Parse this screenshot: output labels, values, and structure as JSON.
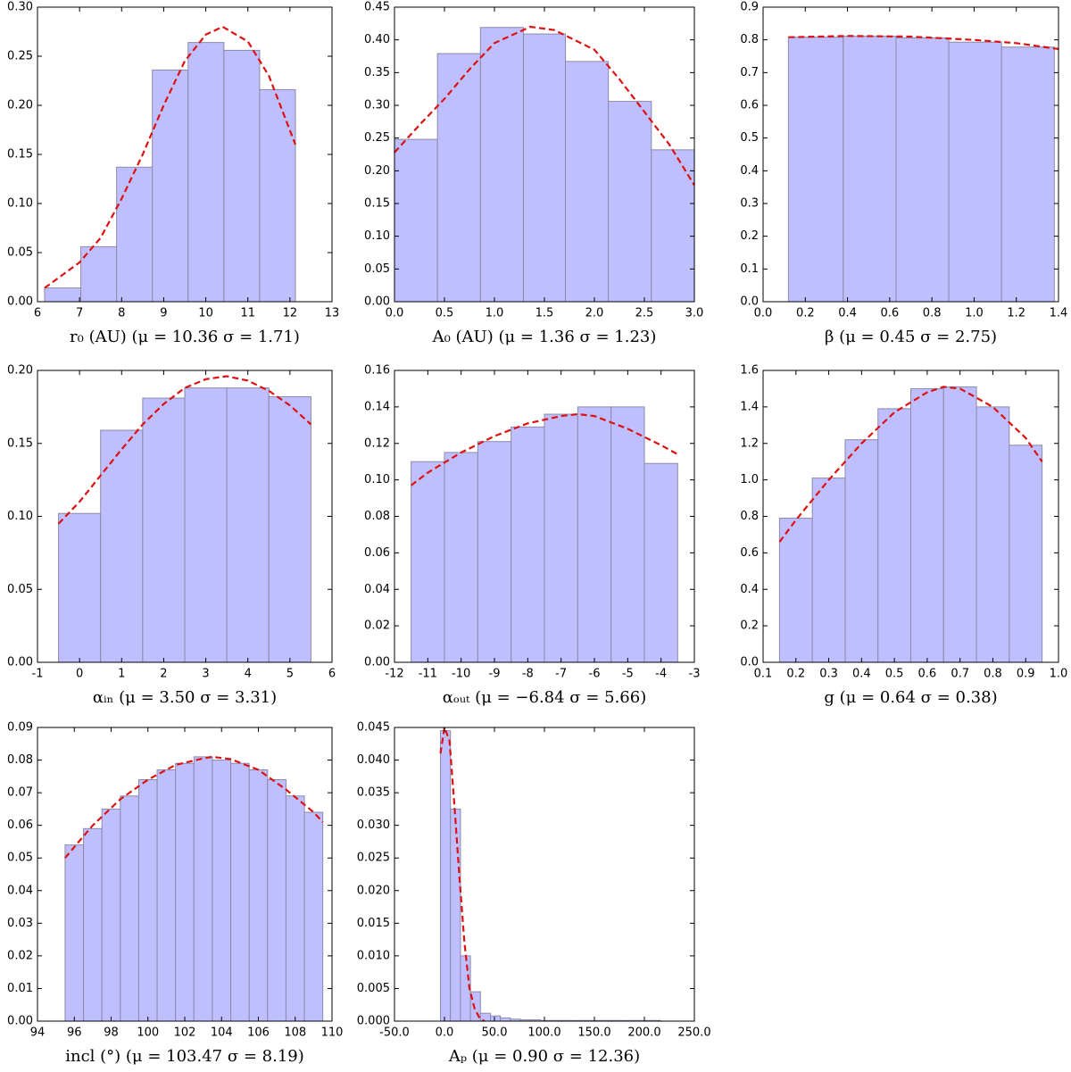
{
  "chart_data": [
    {
      "type": "histogram",
      "x_label": "r₀ (AU) (μ = 10.36 σ = 1.71)",
      "color": "#bfbfff",
      "edgecolor": "#8a8aa8",
      "bins": [
        6.17,
        7.03,
        7.88,
        8.73,
        9.58,
        10.43,
        11.28,
        12.13
      ],
      "values": [
        0.014,
        0.056,
        0.137,
        0.236,
        0.264,
        0.256,
        0.216
      ],
      "fit": {
        "color": "#dd1111",
        "x": [
          6.17,
          7,
          7.5,
          8,
          8.5,
          9,
          9.5,
          10,
          10.4,
          11,
          11.5,
          12.13
        ],
        "values": [
          0.014,
          0.04,
          0.065,
          0.105,
          0.15,
          0.2,
          0.245,
          0.272,
          0.28,
          0.265,
          0.23,
          0.16
        ]
      },
      "xlim": [
        6,
        13
      ],
      "xticks": [
        6,
        7,
        8,
        9,
        10,
        11,
        12,
        13
      ],
      "ylim": [
        0,
        0.3
      ],
      "yticks": [
        {
          "value": 0,
          "label": "0.00"
        },
        0.05,
        {
          "value": 0.1,
          "label": "0.10"
        },
        0.15,
        {
          "value": 0.2,
          "label": "0.20"
        },
        0.25,
        {
          "value": 0.3,
          "label": "0.30"
        }
      ]
    },
    {
      "type": "histogram",
      "x_label": "A₀ (AU) (μ = 1.36 σ = 1.23)",
      "color": "#bfbfff",
      "edgecolor": "#8a8aa8",
      "bins": [
        0,
        0.43,
        0.86,
        1.29,
        1.71,
        2.14,
        2.57,
        3.0
      ],
      "values": [
        0.248,
        0.379,
        0.419,
        0.409,
        0.367,
        0.306,
        0.232
      ],
      "fit": {
        "color": "#dd1111",
        "x": [
          0,
          0.25,
          0.5,
          0.75,
          1.0,
          1.36,
          1.6,
          2.0,
          2.25,
          2.5,
          2.75,
          3.0
        ],
        "values": [
          0.228,
          0.27,
          0.31,
          0.355,
          0.395,
          0.42,
          0.415,
          0.385,
          0.34,
          0.29,
          0.24,
          0.178
        ]
      },
      "xlim": [
        0,
        3
      ],
      "xticks": [
        {
          "value": 0,
          "label": "0.0"
        },
        0.5,
        {
          "value": 1,
          "label": "1.0"
        },
        1.5,
        {
          "value": 2,
          "label": "2.0"
        },
        2.5,
        {
          "value": 3,
          "label": "3.0"
        }
      ],
      "ylim": [
        0,
        0.45
      ],
      "yticks": [
        {
          "value": 0,
          "label": "0.00"
        },
        0.05,
        {
          "value": 0.1,
          "label": "0.10"
        },
        0.15,
        {
          "value": 0.2,
          "label": "0.20"
        },
        0.25,
        {
          "value": 0.3,
          "label": "0.30"
        },
        0.35,
        {
          "value": 0.4,
          "label": "0.40"
        },
        0.45
      ]
    },
    {
      "type": "histogram",
      "x_label": "β (μ = 0.45 σ = 2.75)",
      "color": "#bfbfff",
      "edgecolor": "#8a8aa8",
      "bins": [
        0.12,
        0.38,
        0.63,
        0.88,
        1.13,
        1.38
      ],
      "values": [
        0.808,
        0.811,
        0.806,
        0.793,
        0.778
      ],
      "fit": {
        "color": "#dd1111",
        "x": [
          0.12,
          0.4,
          0.7,
          1.0,
          1.2,
          1.4
        ],
        "values": [
          0.808,
          0.812,
          0.81,
          0.8,
          0.79,
          0.772
        ]
      },
      "xlim": [
        0,
        1.4
      ],
      "xticks": [
        {
          "value": 0,
          "label": "0.0"
        },
        0.2,
        0.4,
        0.6,
        0.8,
        {
          "value": 1,
          "label": "1.0"
        },
        1.2,
        1.4
      ],
      "ylim": [
        0,
        0.9
      ],
      "yticks": [
        {
          "value": 0,
          "label": "0.0"
        },
        0.1,
        0.2,
        0.3,
        0.4,
        0.5,
        0.6,
        0.7,
        0.8,
        0.9
      ]
    },
    {
      "type": "histogram",
      "x_label": "αᵢₙ (μ = 3.50 σ = 3.31)",
      "color": "#bfbfff",
      "edgecolor": "#8a8aa8",
      "bins": [
        -0.5,
        0.5,
        1.5,
        2.5,
        3.5,
        4.5,
        5.5
      ],
      "values": [
        0.102,
        0.159,
        0.181,
        0.188,
        0.188,
        0.182
      ],
      "fit": {
        "color": "#dd1111",
        "x": [
          -0.5,
          0,
          0.5,
          1,
          1.5,
          2,
          2.5,
          3,
          3.5,
          4,
          4.5,
          5,
          5.5
        ],
        "values": [
          0.095,
          0.11,
          0.128,
          0.146,
          0.163,
          0.177,
          0.188,
          0.194,
          0.196,
          0.193,
          0.186,
          0.176,
          0.163
        ]
      },
      "xlim": [
        -1,
        6
      ],
      "xticks": [
        -1,
        0,
        1,
        2,
        3,
        4,
        5,
        6
      ],
      "ylim": [
        0,
        0.2
      ],
      "yticks": [
        {
          "value": 0,
          "label": "0.00"
        },
        0.05,
        {
          "value": 0.1,
          "label": "0.10"
        },
        0.15,
        {
          "value": 0.2,
          "label": "0.20"
        }
      ]
    },
    {
      "type": "histogram",
      "x_label": "αₒᵤₜ (μ = −6.84 σ = 5.66)",
      "color": "#bfbfff",
      "edgecolor": "#8a8aa8",
      "bins": [
        -11.5,
        -10.5,
        -9.5,
        -8.5,
        -7.5,
        -6.5,
        -5.5,
        -4.5,
        -3.5
      ],
      "values": [
        0.11,
        0.115,
        0.121,
        0.129,
        0.136,
        0.14,
        0.14,
        0.109
      ],
      "fit": {
        "color": "#dd1111",
        "x": [
          -11.5,
          -11,
          -10,
          -9,
          -8,
          -7,
          -6.5,
          -6,
          -5,
          -4,
          -3.5
        ],
        "values": [
          0.097,
          0.104,
          0.115,
          0.124,
          0.131,
          0.135,
          0.136,
          0.135,
          0.128,
          0.119,
          0.114
        ]
      },
      "xlim": [
        -12,
        -3
      ],
      "xticks": [
        -12,
        -11,
        -10,
        -9,
        -8,
        -7,
        -6,
        -5,
        -4,
        -3
      ],
      "ylim": [
        0,
        0.16
      ],
      "yticks": [
        {
          "value": 0,
          "label": "0.00"
        },
        0.02,
        0.04,
        0.06,
        0.08,
        {
          "value": 0.1,
          "label": "0.10"
        },
        0.12,
        0.14,
        0.16
      ]
    },
    {
      "type": "histogram",
      "x_label": "g (μ = 0.64 σ = 0.38)",
      "color": "#bfbfff",
      "edgecolor": "#8a8aa8",
      "bins": [
        0.15,
        0.25,
        0.35,
        0.45,
        0.55,
        0.65,
        0.75,
        0.85,
        0.95
      ],
      "values": [
        0.79,
        1.01,
        1.22,
        1.39,
        1.5,
        1.51,
        1.4,
        1.19
      ],
      "fit": {
        "color": "#dd1111",
        "x": [
          0.15,
          0.2,
          0.3,
          0.4,
          0.5,
          0.6,
          0.65,
          0.7,
          0.8,
          0.9,
          0.95
        ],
        "values": [
          0.66,
          0.78,
          1.0,
          1.2,
          1.37,
          1.48,
          1.51,
          1.5,
          1.4,
          1.23,
          1.1
        ]
      },
      "xlim": [
        0.1,
        1.0
      ],
      "xticks": [
        0.1,
        0.2,
        0.3,
        0.4,
        0.5,
        0.6,
        0.7,
        0.8,
        0.9,
        {
          "value": 1,
          "label": "1.0"
        }
      ],
      "ylim": [
        0,
        1.6
      ],
      "yticks": [
        {
          "value": 0,
          "label": "0.0"
        },
        0.2,
        0.4,
        0.6,
        0.8,
        {
          "value": 1,
          "label": "1.0"
        },
        1.2,
        1.4,
        1.6
      ]
    },
    {
      "type": "histogram",
      "x_label": "incl (°) (μ = 103.47 σ = 8.19)",
      "color": "#bfbfff",
      "edgecolor": "#8a8aa8",
      "bins": [
        95.5,
        96.5,
        97.5,
        98.5,
        99.5,
        100.5,
        101.5,
        102.5,
        103.5,
        104.5,
        105.5,
        106.5,
        107.5,
        108.5,
        109.5
      ],
      "values": [
        0.054,
        0.059,
        0.065,
        0.069,
        0.074,
        0.077,
        0.079,
        0.081,
        0.08,
        0.079,
        0.077,
        0.074,
        0.069,
        0.064
      ],
      "fit": {
        "color": "#dd1111",
        "x": [
          95.5,
          97,
          98.5,
          100,
          101.5,
          103,
          103.5,
          104.5,
          106,
          107.5,
          109,
          109.5
        ],
        "values": [
          0.05,
          0.06,
          0.068,
          0.074,
          0.0785,
          0.0805,
          0.081,
          0.0803,
          0.077,
          0.071,
          0.064,
          0.061
        ]
      },
      "xlim": [
        94,
        110
      ],
      "xticks": [
        94,
        96,
        98,
        100,
        102,
        104,
        106,
        108,
        110
      ],
      "ylim": [
        0,
        0.09
      ],
      "yticks": [
        {
          "value": 0,
          "label": "0.00"
        },
        0.01,
        0.02,
        0.03,
        0.04,
        0.05,
        0.06,
        0.07,
        0.08,
        0.09
      ]
    },
    {
      "type": "histogram",
      "x_label": "Aₚ (μ = 0.90 σ = 12.36)",
      "color": "#bfbfff",
      "edgecolor": "#8a8aa8",
      "bins": [
        -4,
        6,
        16,
        26,
        36,
        46,
        56,
        66,
        76,
        86,
        96,
        106,
        116,
        126,
        136,
        146,
        156,
        166,
        176,
        186,
        196,
        206,
        216
      ],
      "values": [
        0.0445,
        0.0325,
        0.01,
        0.0045,
        0.0012,
        0.0008,
        0.0005,
        0.0003,
        0.0002,
        0.0002,
        0.0001,
        0.0001,
        0.0001,
        0.0001,
        0.0001,
        0.0001,
        0.0001,
        0.0001,
        0.0001,
        0.0001,
        0.0001,
        0.0001
      ],
      "fit": {
        "color": "#dd1111",
        "x": [
          -4,
          0,
          5,
          10,
          15,
          20,
          25,
          30,
          35,
          40
        ],
        "values": [
          0.041,
          0.045,
          0.043,
          0.033,
          0.022,
          0.012,
          0.005,
          0.002,
          0.0005,
          0
        ]
      },
      "xlim": [
        -50,
        250
      ],
      "xticks": [
        {
          "value": -50,
          "label": "-50.0"
        },
        {
          "value": 0,
          "label": "0.0"
        },
        {
          "value": 50,
          "label": "50.0"
        },
        {
          "value": 100,
          "label": "100.0"
        },
        {
          "value": 150,
          "label": "150.0"
        },
        {
          "value": 200,
          "label": "200.0"
        },
        {
          "value": 250,
          "label": "250.0"
        }
      ],
      "ylim": [
        0,
        0.045
      ],
      "yticks": [
        {
          "value": 0,
          "label": "0.000"
        },
        0.005,
        {
          "value": 0.01,
          "label": "0.010"
        },
        0.015,
        {
          "value": 0.02,
          "label": "0.020"
        },
        0.025,
        {
          "value": 0.03,
          "label": "0.030"
        },
        0.035,
        {
          "value": 0.04,
          "label": "0.040"
        },
        0.045
      ]
    }
  ]
}
